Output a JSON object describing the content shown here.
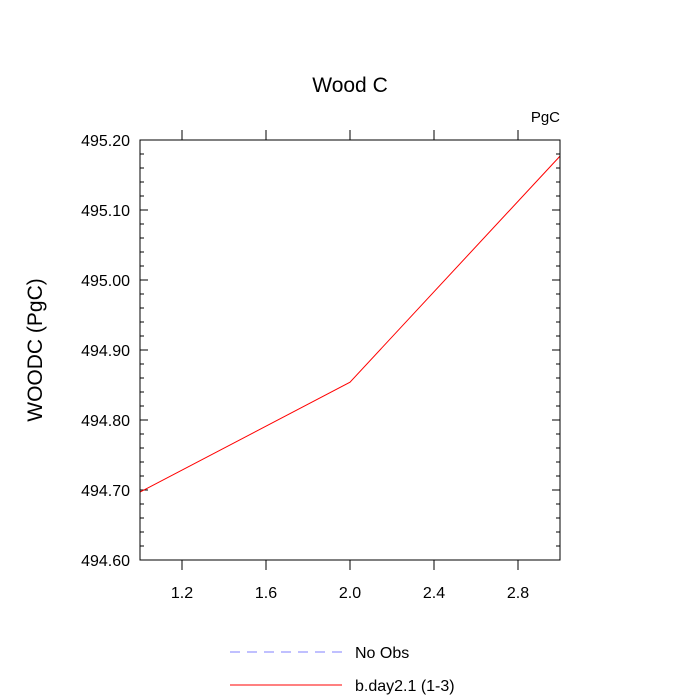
{
  "chart_data": {
    "type": "line",
    "title": "Wood C",
    "units_label": "PgC",
    "ylabel": "WOODC  (PgC)",
    "xlabel": "",
    "xlim": [
      1.0,
      3.0
    ],
    "ylim": [
      494.6,
      495.2
    ],
    "x_ticks": [
      1.2,
      1.6,
      2.0,
      2.4,
      2.8
    ],
    "x_tick_labels": [
      "1.2",
      "1.6",
      "2.0",
      "2.4",
      "2.8"
    ],
    "y_ticks": [
      494.6,
      494.7,
      494.8,
      494.9,
      495.0,
      495.1,
      495.2
    ],
    "y_tick_labels": [
      "494.60",
      "494.70",
      "494.80",
      "494.90",
      "495.00",
      "495.10",
      "495.20"
    ],
    "grid": false,
    "legend_position": "bottom-center",
    "series": [
      {
        "name": "b.day2.1 (1-3)",
        "color": "#ff0000",
        "style": "solid",
        "x": [
          1.0,
          2.0,
          3.0
        ],
        "y": [
          494.697,
          494.854,
          495.177
        ]
      }
    ],
    "legend": [
      {
        "label": "No Obs",
        "color": "#8080ff",
        "style": "dashed"
      },
      {
        "label": "b.day2.1 (1-3)",
        "color": "#ff0000",
        "style": "solid"
      }
    ]
  }
}
